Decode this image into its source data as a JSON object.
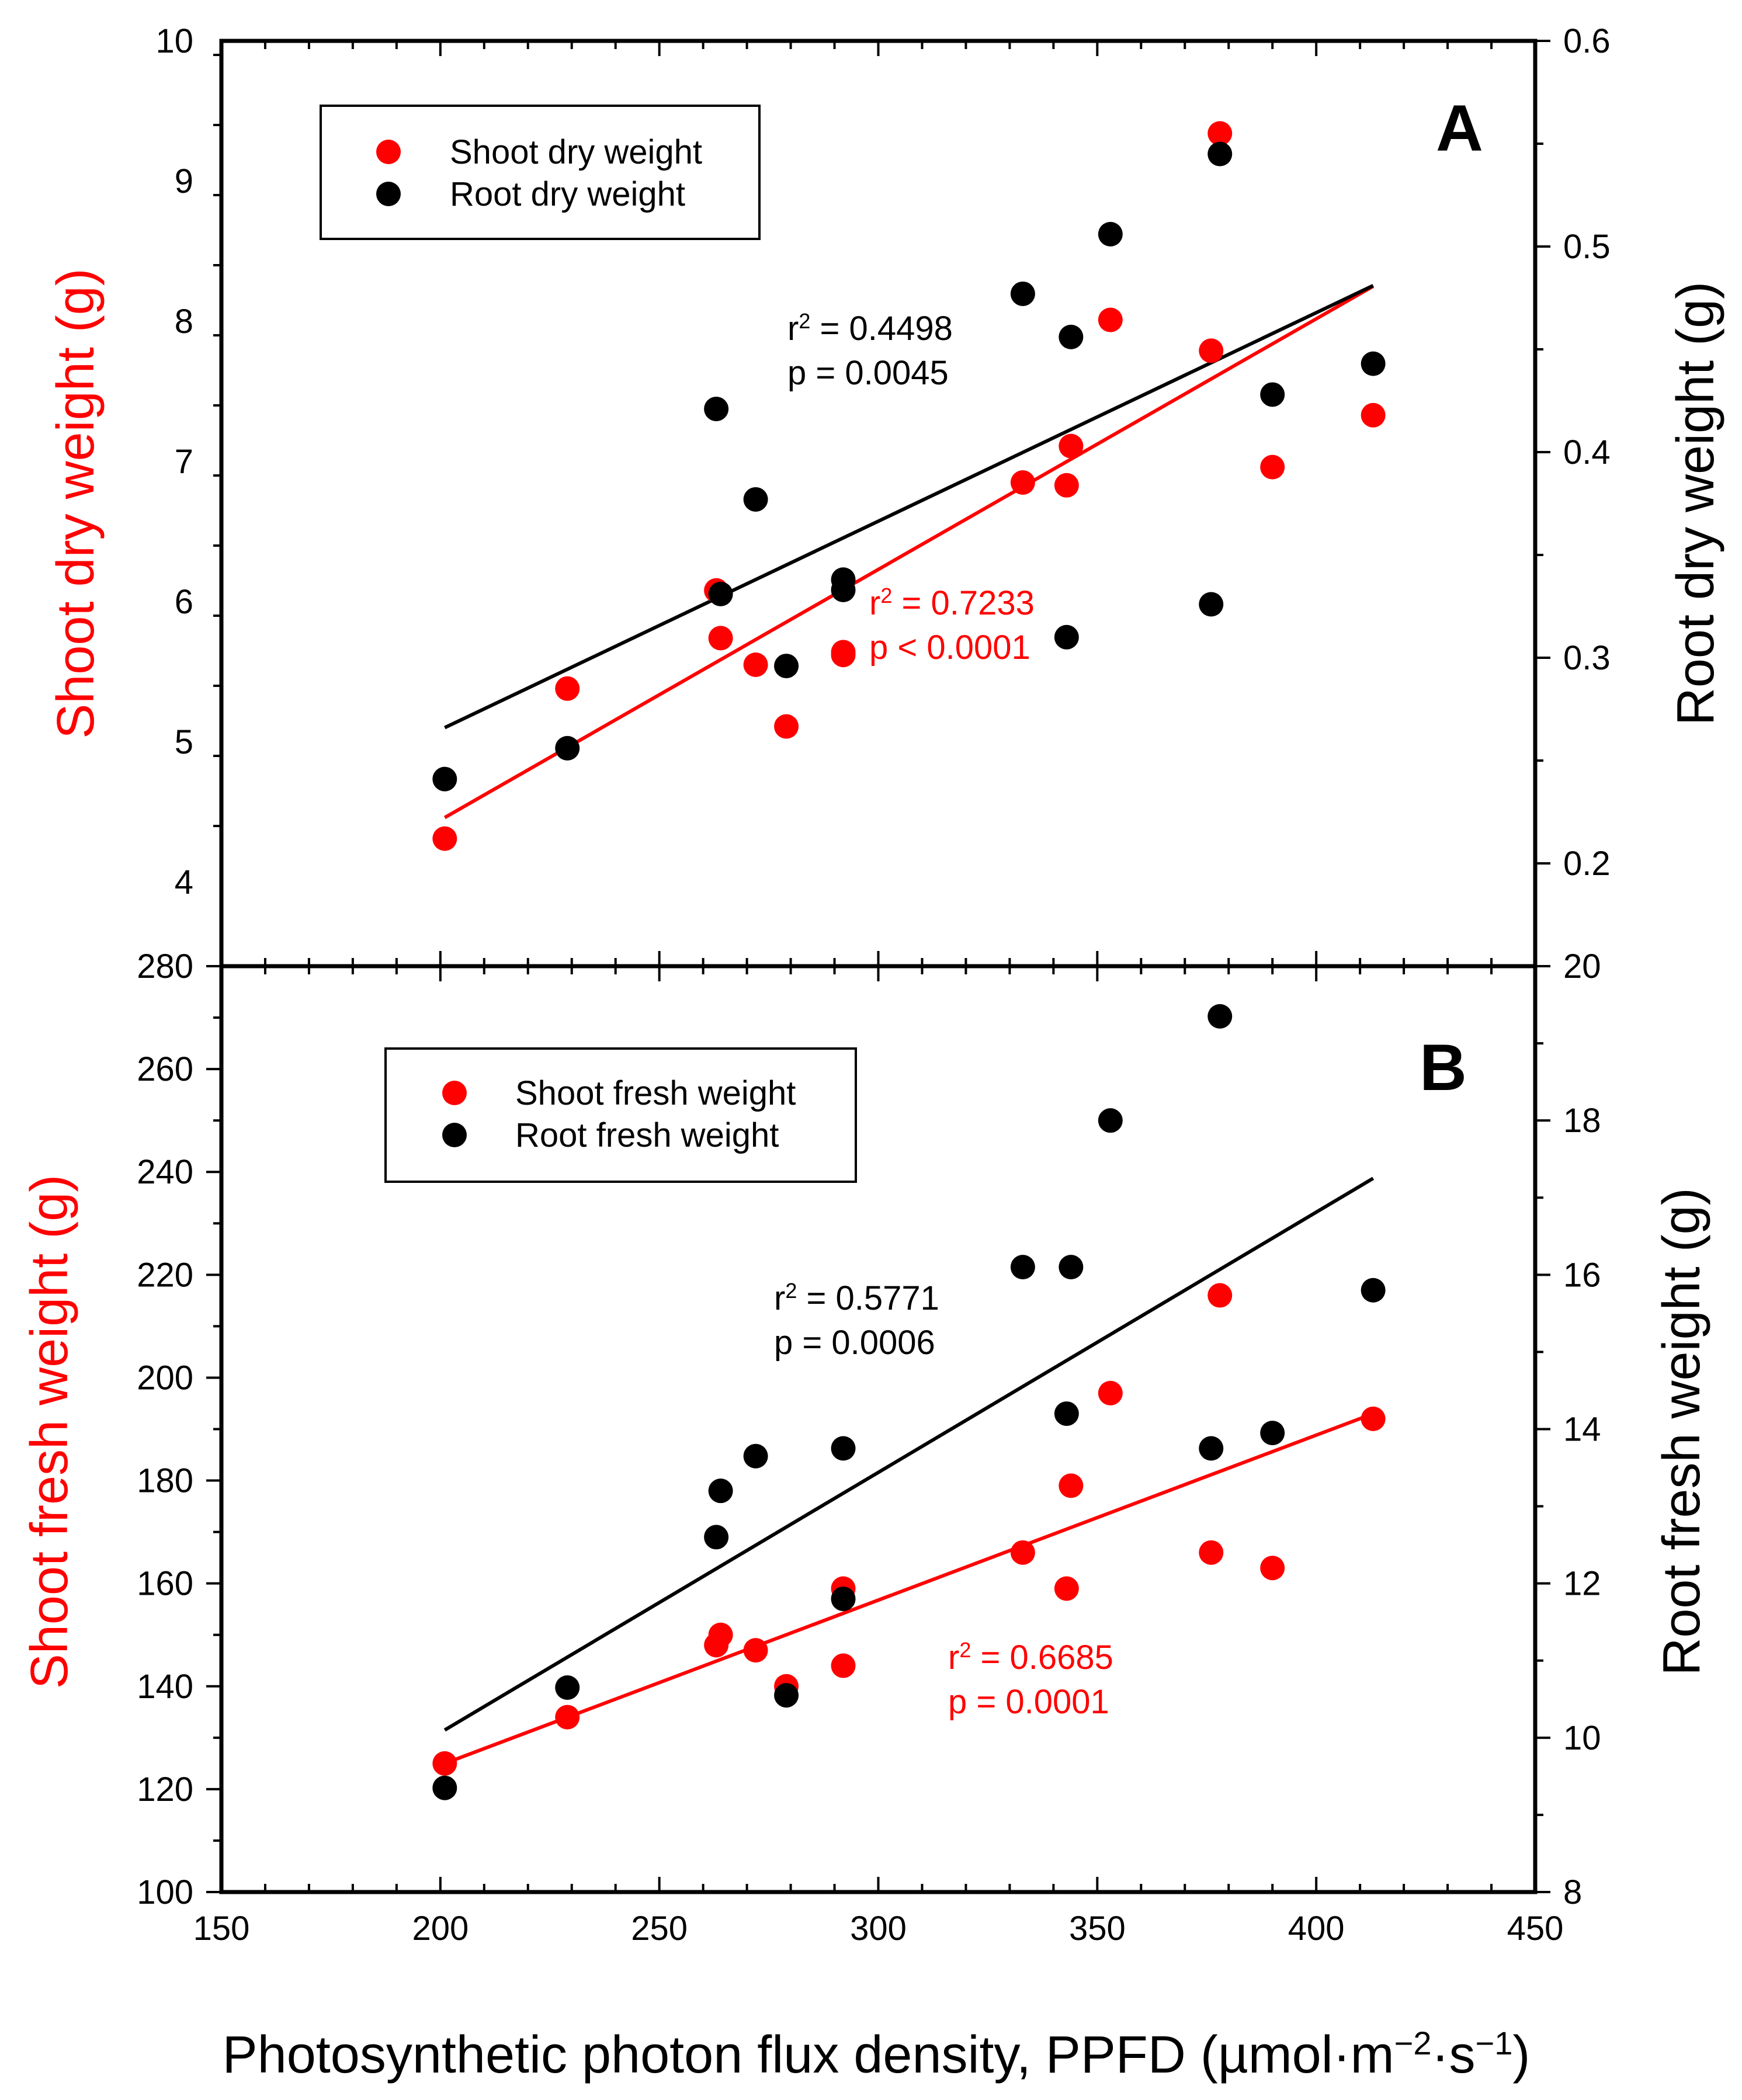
{
  "chart_data": [
    {
      "type": "scatter",
      "panel": "A",
      "xlim": [
        150,
        450
      ],
      "ylim_left": [
        3.4,
        10
      ],
      "ylim_right": [
        0.15,
        0.6
      ],
      "x_ticks": [
        "150",
        "200",
        "250",
        "300",
        "350",
        "400",
        "450"
      ],
      "y_left_ticks": [
        "4",
        "5",
        "6",
        "7",
        "8",
        "9",
        "10"
      ],
      "y_right_ticks": [
        "0.2",
        "0.3",
        "0.4",
        "0.5",
        "0.6"
      ],
      "y_left_label": "Shoot dry weight (g)",
      "y_right_label": "Root dry weight (g)",
      "legend_position": "top-left",
      "series": [
        {
          "name": "Shoot dry weight",
          "color": "#ff0000",
          "axis": "left",
          "points": [
            [
              201,
              4.31
            ],
            [
              229,
              5.38
            ],
            [
              263,
              6.08
            ],
            [
              264,
              5.74
            ],
            [
              272,
              5.55
            ],
            [
              279,
              5.11
            ],
            [
              292,
              5.62
            ],
            [
              292,
              5.64
            ],
            [
              333,
              6.85
            ],
            [
              343,
              6.83
            ],
            [
              344,
              7.11
            ],
            [
              353,
              8.01
            ],
            [
              376,
              7.79
            ],
            [
              378,
              9.34
            ],
            [
              390,
              6.96
            ],
            [
              413,
              7.33
            ]
          ],
          "fit": {
            "x": [
              201,
              413
            ],
            "y": [
              4.46,
              8.25
            ]
          },
          "stats": {
            "r2": "r² = 0.7233",
            "p": "p < 0.0001"
          }
        },
        {
          "name": "Root dry weight",
          "color": "#000000",
          "axis": "right",
          "points": [
            [
              201,
              0.241
            ],
            [
              229,
              0.256
            ],
            [
              263,
              0.421
            ],
            [
              264,
              0.331
            ],
            [
              272,
              0.377
            ],
            [
              279,
              0.296
            ],
            [
              292,
              0.333
            ],
            [
              292,
              0.338
            ],
            [
              333,
              0.477
            ],
            [
              343,
              0.31
            ],
            [
              344,
              0.456
            ],
            [
              353,
              0.506
            ],
            [
              376,
              0.326
            ],
            [
              378,
              0.545
            ],
            [
              390,
              0.428
            ],
            [
              413,
              0.443
            ]
          ],
          "fit": {
            "x": [
              201,
              413
            ],
            "y": [
              0.266,
              0.481
            ]
          },
          "stats": {
            "r2": "r² = 0.4498",
            "p": "p = 0.0045"
          }
        }
      ]
    },
    {
      "type": "scatter",
      "panel": "B",
      "xlim": [
        150,
        450
      ],
      "ylim_left": [
        100,
        280
      ],
      "ylim_right": [
        8,
        20
      ],
      "x_ticks": [
        "150",
        "200",
        "250",
        "300",
        "350",
        "400",
        "450"
      ],
      "y_left_ticks": [
        "100",
        "120",
        "140",
        "160",
        "180",
        "200",
        "220",
        "240",
        "260",
        "280"
      ],
      "y_right_ticks": [
        "8",
        "10",
        "12",
        "14",
        "16",
        "18",
        "20"
      ],
      "y_left_label": "Shoot fresh weight (g)",
      "y_right_label": "Root fresh weight (g)",
      "x_label": "Photosynthetic photon flux density, PPFD (µmol·m−2·s−1)",
      "legend_position": "top-left",
      "series": [
        {
          "name": "Shoot fresh weight",
          "color": "#ff0000",
          "axis": "left",
          "points": [
            [
              201,
              125
            ],
            [
              229,
              134
            ],
            [
              263,
              148
            ],
            [
              264,
              150
            ],
            [
              272,
              147
            ],
            [
              279,
              140
            ],
            [
              292,
              159
            ],
            [
              292,
              144
            ],
            [
              333,
              166
            ],
            [
              343,
              159
            ],
            [
              344,
              179
            ],
            [
              353,
              197
            ],
            [
              376,
              166
            ],
            [
              378,
              216
            ],
            [
              390,
              163
            ],
            [
              413,
              192
            ]
          ],
          "fit": {
            "x": [
              201,
              413
            ],
            "y": [
              125,
              193
            ]
          },
          "stats": {
            "r2": "r² = 0.6685",
            "p": "p = 0.0001"
          }
        },
        {
          "name": "Root fresh weight",
          "color": "#000000",
          "axis": "right",
          "points": [
            [
              201,
              9.35
            ],
            [
              229,
              10.65
            ],
            [
              263,
              12.6
            ],
            [
              264,
              13.2
            ],
            [
              272,
              13.65
            ],
            [
              279,
              10.55
            ],
            [
              292,
              11.8
            ],
            [
              292,
              13.75
            ],
            [
              333,
              16.1
            ],
            [
              343,
              14.2
            ],
            [
              344,
              16.1
            ],
            [
              353,
              18
            ],
            [
              376,
              13.75
            ],
            [
              378,
              19.35
            ],
            [
              390,
              13.95
            ],
            [
              413,
              15.8
            ]
          ],
          "fit": {
            "x": [
              201,
              413
            ],
            "y": [
              10.1,
              17.25
            ]
          },
          "stats": {
            "r2": "r² = 0.5771",
            "p": "p = 0.0006"
          }
        }
      ]
    }
  ],
  "panels": {
    "a": {
      "label": "A",
      "y_left_label": "Shoot dry weight (g)",
      "y_right_label": "Root dry weight (g)",
      "legend": [
        "Shoot dry weight",
        "Root dry weight"
      ],
      "stats_black": {
        "r2_prefix": "r",
        "r2_sup": "2",
        "r2_value": " = 0.4498",
        "p": "p = 0.0045"
      },
      "stats_red": {
        "r2_prefix": "r",
        "r2_sup": "2",
        "r2_value": " = 0.7233",
        "p": "p < 0.0001"
      }
    },
    "b": {
      "label": "B",
      "y_left_label": "Shoot fresh weight (g)",
      "y_right_label": "Root fresh weight (g)",
      "legend": [
        "Shoot fresh weight",
        "Root fresh weight"
      ],
      "stats_black": {
        "r2_prefix": "r",
        "r2_sup": "2",
        "r2_value": " = 0.5771",
        "p": "p = 0.0006"
      },
      "stats_red": {
        "r2_prefix": "r",
        "r2_sup": "2",
        "r2_value": " = 0.6685",
        "p": "p = 0.0001"
      }
    }
  },
  "x_axis": {
    "label_main": "Photosynthetic photon flux density, PPFD (µmol·m",
    "label_sup1": "−2",
    "label_mid": "·s",
    "label_sup2": "−1",
    "label_end": ")"
  },
  "colors": {
    "shoot": "#ff0000",
    "root": "#000000"
  }
}
